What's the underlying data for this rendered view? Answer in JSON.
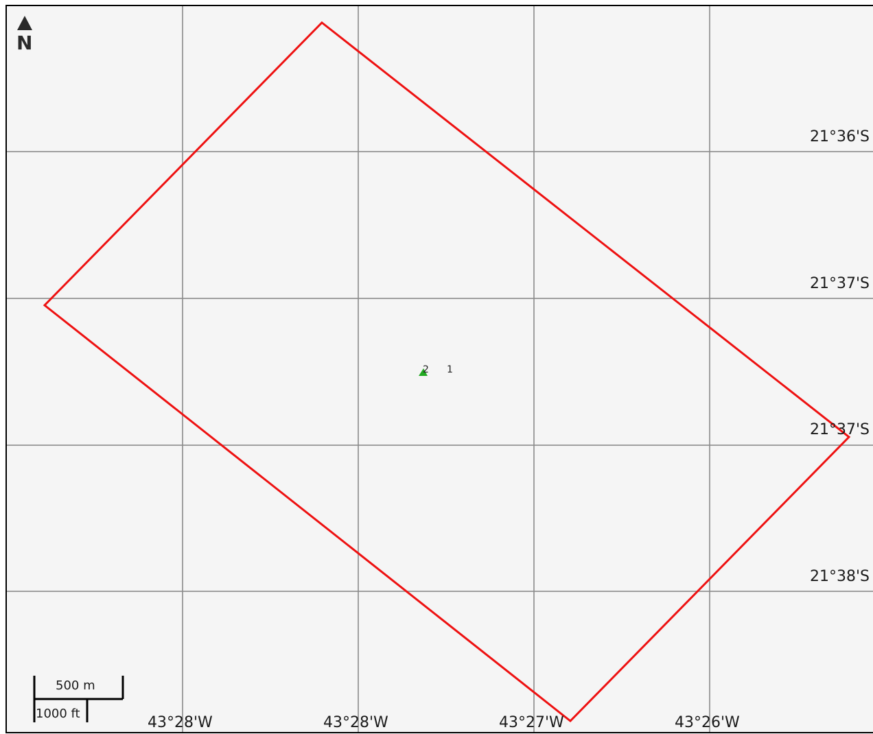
{
  "map": {
    "north_label": "N",
    "background_color": "#f5f5f5",
    "grid_color": "#8a8a8a",
    "boundary_color": "#ee1111",
    "marker_color": "#22aa22"
  },
  "latitude_labels": [
    "21°36'S",
    "21°37'S",
    "21°37'S",
    "21°38'S"
  ],
  "longitude_labels": [
    "43°28'W",
    "43°28'W",
    "43°27'W",
    "43°26'W"
  ],
  "markers": [
    {
      "label": "2",
      "icon": "triangle-marker-icon"
    },
    {
      "label": "1",
      "icon": null
    }
  ],
  "scale_bar": {
    "metric_label": "500 m",
    "imperial_label": "1000 ft"
  }
}
